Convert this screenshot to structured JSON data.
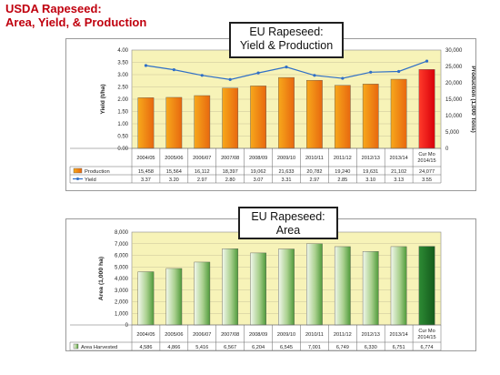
{
  "page": {
    "title_line1": "USDA Rapeseed:",
    "title_line2": "Area, Yield, & Production"
  },
  "colors": {
    "title_red": "#c0000e",
    "plot_bg": "#f7f3b8",
    "production_gradient": [
      "#f7a81b",
      "#e8680f"
    ],
    "highlight_bar": "#e8000a",
    "area_bar_gradient": [
      "#f2f8ec",
      "#4f9a3a"
    ],
    "area_highlight_bar": "#1a6f24",
    "yield_line": "#2f6fc7"
  },
  "chart_data": [
    {
      "type": "bar",
      "title_line1": "EU Rapeseed:",
      "title_line2": "Yield & Production",
      "categories": [
        "2004/05",
        "2005/06",
        "2006/07",
        "2007/08",
        "2008/09",
        "2009/10",
        "2010/11",
        "2011/12",
        "2012/13",
        "2013/14",
        "Cur Mo 2014/15"
      ],
      "ylabel": "Yield (t/ha)",
      "ylim": [
        0,
        4
      ],
      "yticks": [
        "0.00",
        "0.50",
        "1.00",
        "1.50",
        "2.00",
        "2.50",
        "3.00",
        "3.50",
        "4.00"
      ],
      "y2label": "Production (1,000 Tons)",
      "y2lim": [
        0,
        30000
      ],
      "y2ticks": [
        "0",
        "5,000",
        "10,000",
        "15,000",
        "20,000",
        "25,000",
        "30,000"
      ],
      "grid": true,
      "series": [
        {
          "name": "Production",
          "type": "bar",
          "axis": "right",
          "values": [
            15458,
            15564,
            16112,
            18397,
            19062,
            21633,
            20782,
            19240,
            19631,
            21102,
            24077
          ],
          "labels": [
            "15,458",
            "15,564",
            "16,112",
            "18,397",
            "19,062",
            "21,633",
            "20,782",
            "19,240",
            "19,631",
            "21,102",
            "24,077"
          ]
        },
        {
          "name": "Yield",
          "type": "line",
          "axis": "left",
          "values": [
            3.37,
            3.2,
            2.97,
            2.8,
            3.07,
            3.31,
            2.97,
            2.85,
            3.1,
            3.13,
            3.55
          ],
          "labels": [
            "3.37",
            "3.20",
            "2.97",
            "2.80",
            "3.07",
            "3.31",
            "2.97",
            "2.85",
            "3.10",
            "3.13",
            "3.55"
          ]
        }
      ]
    },
    {
      "type": "bar",
      "title_line1": "EU Rapeseed:",
      "title_line2": "Area",
      "categories": [
        "2004/05",
        "2005/06",
        "2006/07",
        "2007/08",
        "2008/09",
        "2009/10",
        "2010/11",
        "2011/12",
        "2012/13",
        "2013/14",
        "Cur Mo 2014/15"
      ],
      "ylabel": "Area (1,000 ha)",
      "ylim": [
        0,
        8000
      ],
      "yticks": [
        "0",
        "1,000",
        "2,000",
        "3,000",
        "4,000",
        "5,000",
        "6,000",
        "7,000",
        "8,000"
      ],
      "grid": true,
      "series": [
        {
          "name": "Area Harvested",
          "values": [
            4586,
            4866,
            5416,
            6567,
            6204,
            6545,
            7001,
            6749,
            6330,
            6751,
            6774
          ],
          "labels": [
            "4,586",
            "4,866",
            "5,416",
            "6,567",
            "6,204",
            "6,545",
            "7,001",
            "6,749",
            "6,330",
            "6,751",
            "6,774"
          ]
        }
      ]
    }
  ]
}
